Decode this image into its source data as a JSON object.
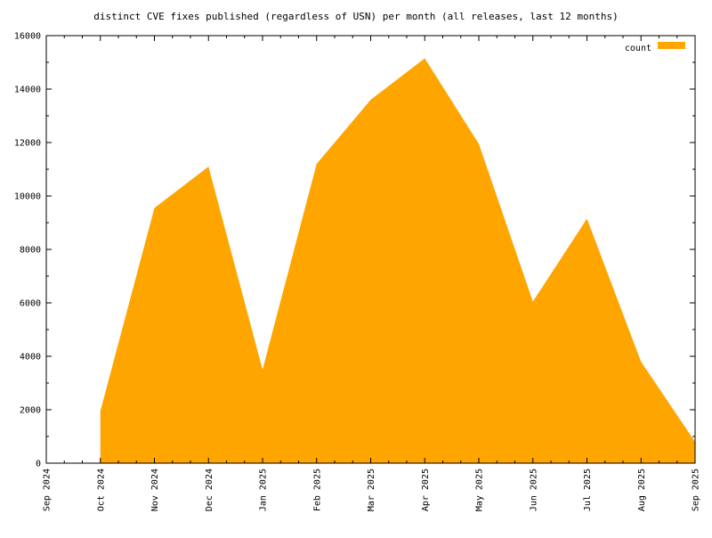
{
  "chart_data": {
    "type": "area",
    "title": "distinct CVE fixes published (regardless of USN) per month (all releases, last 12 months)",
    "xlabel": "",
    "ylabel": "",
    "x": [
      "Oct 2024",
      "Nov 2024",
      "Dec 2024",
      "Jan 2025",
      "Feb 2025",
      "Mar 2025",
      "Apr 2025",
      "May 2025",
      "Jun 2025",
      "Jul 2025",
      "Aug 2025",
      "Sep 2025"
    ],
    "x_ticks": [
      "Sep 2024",
      "Oct 2024",
      "Nov 2024",
      "Dec 2024",
      "Jan 2025",
      "Feb 2025",
      "Mar 2025",
      "Apr 2025",
      "May 2025",
      "Jun 2025",
      "Jul 2025",
      "Aug 2025",
      "Sep 2025"
    ],
    "xlim": [
      "Sep 2024",
      "Sep 2025"
    ],
    "ylim": [
      0,
      16000
    ],
    "y_ticks": [
      0,
      2000,
      4000,
      6000,
      8000,
      10000,
      12000,
      14000,
      16000
    ],
    "grid": false,
    "legend_position": "top-right",
    "series": [
      {
        "name": "count",
        "color": "#ffa500",
        "values": [
          1950,
          9550,
          11100,
          3500,
          11200,
          13600,
          15150,
          11950,
          6050,
          9150,
          3800,
          800
        ]
      }
    ]
  }
}
